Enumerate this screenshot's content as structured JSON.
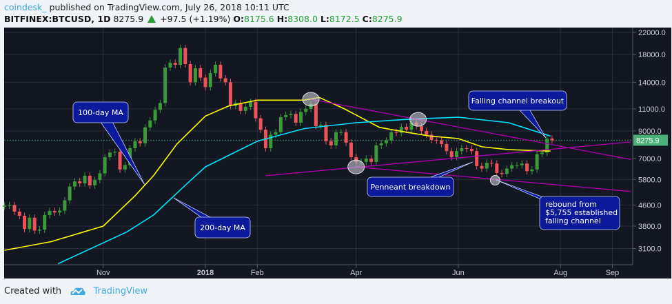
{
  "header": {
    "publisher": "coindesk_",
    "published_text": "published on TradingView.com, July 26, 2018 10:11 UTC",
    "symbol": "BITFINEX:BTCUSD, 1D",
    "last": "8275.9",
    "change": "+97.5 (+1.19%)",
    "o_label": "O:",
    "o": "8175.6",
    "h_label": "H:",
    "h": "8308.0",
    "l_label": "L:",
    "l": "8172.5",
    "c_label": "C:",
    "c": "8275.9",
    "direction_icon": "triangle-up-icon"
  },
  "footer": {
    "created_with": "Created with",
    "brand": "TradingView",
    "logo_icon": "tradingview-cloud-icon"
  },
  "colors": {
    "background": "#131722",
    "up": "#3a9a3a",
    "down": "#f0525a",
    "ma100": "#ffff00",
    "ma200": "#00e5ff",
    "trendline": "#b000b0",
    "callout": "#0a1a9a",
    "price_tag": "#4caf78"
  },
  "chart_data": {
    "type": "candlestick",
    "title": "",
    "y_scale": "log",
    "ylim": [
      2800,
      23000
    ],
    "y_ticks": [
      "22000.0",
      "18000.0",
      "14000.0",
      "11000.0",
      "9000.0",
      "7000.0",
      "5800.0",
      "4600.0",
      "3800.0",
      "3100.0"
    ],
    "y_tick_values": [
      22000,
      18000,
      14000,
      11000,
      9000,
      7000,
      5800,
      4600,
      3800,
      3100
    ],
    "x_ticks": [
      {
        "label": "Nov",
        "date": "2017-11-01"
      },
      {
        "label": "2018",
        "date": "2018-01-01"
      },
      {
        "label": "Feb",
        "date": "2018-02-01"
      },
      {
        "label": "Apr",
        "date": "2018-04-01"
      },
      {
        "label": "Jun",
        "date": "2018-06-01"
      },
      {
        "label": "Aug",
        "date": "2018-08-01"
      },
      {
        "label": "Sep",
        "date": "2018-09-01"
      }
    ],
    "xlim": [
      "2017-09-01",
      "2018-09-12"
    ],
    "grid": true,
    "last_price": {
      "value": 8275.9,
      "label": "8275.9"
    },
    "candles_start": "2017-09-03",
    "candles_interval_days": 3,
    "closes": [
      4580,
      4600,
      4330,
      4170,
      3700,
      4100,
      3650,
      3680,
      4200,
      4360,
      4300,
      4370,
      4800,
      5440,
      5700,
      5600,
      6000,
      5500,
      5770,
      6130,
      7100,
      7400,
      7450,
      6350,
      6600,
      7700,
      8200,
      8050,
      9300,
      9900,
      10900,
      11600,
      16000,
      16700,
      16400,
      19100,
      16500,
      14000,
      15900,
      14600,
      13400,
      15200,
      16400,
      14500,
      14000,
      11300,
      11600,
      10800,
      11200,
      11700,
      10100,
      9100,
      7700,
      8700,
      8900,
      10200,
      10400,
      10500,
      9700,
      10700,
      11000,
      11500,
      9400,
      9500,
      8200,
      7900,
      8900,
      8900,
      8100,
      7100,
      6800,
      6800,
      7000,
      6800,
      7900,
      8050,
      8250,
      8900,
      8850,
      9350,
      9100,
      9700,
      9400,
      9000,
      8700,
      8300,
      8250,
      8000,
      7500,
      7100,
      7500,
      7700,
      7650,
      7500,
      6550,
      6400,
      6750,
      6700,
      6150,
      6100,
      6400,
      6600,
      6600,
      6700,
      6250,
      6350,
      7300,
      7400,
      8400,
      8275.9
    ],
    "series": [
      {
        "name": "100-day MA",
        "points": [
          [
            "2017-09-03",
            3050
          ],
          [
            "2017-10-01",
            3300
          ],
          [
            "2017-11-01",
            3800
          ],
          [
            "2017-11-20",
            5000
          ],
          [
            "2017-12-01",
            6000
          ],
          [
            "2017-12-15",
            8000
          ],
          [
            "2018-01-01",
            10300
          ],
          [
            "2018-01-15",
            11300
          ],
          [
            "2018-02-01",
            11900
          ],
          [
            "2018-03-01",
            11900
          ],
          [
            "2018-03-10",
            12200
          ],
          [
            "2018-03-25",
            11000
          ],
          [
            "2018-04-15",
            9300
          ],
          [
            "2018-05-01",
            8900
          ],
          [
            "2018-05-15",
            8600
          ],
          [
            "2018-06-01",
            8400
          ],
          [
            "2018-06-15",
            7800
          ],
          [
            "2018-07-01",
            7600
          ],
          [
            "2018-07-26",
            7500
          ]
        ]
      },
      {
        "name": "200-day MA",
        "points": [
          [
            "2017-10-05",
            2700
          ],
          [
            "2017-11-15",
            3600
          ],
          [
            "2017-12-01",
            4200
          ],
          [
            "2017-12-20",
            5500
          ],
          [
            "2018-01-01",
            6500
          ],
          [
            "2018-02-01",
            8200
          ],
          [
            "2018-03-01",
            9200
          ],
          [
            "2018-04-01",
            9700
          ],
          [
            "2018-05-01",
            10000
          ],
          [
            "2018-06-01",
            10200
          ],
          [
            "2018-07-01",
            9700
          ],
          [
            "2018-07-26",
            8600
          ]
        ]
      }
    ],
    "trendlines": [
      [
        [
          "2018-03-05",
          12000
        ],
        [
          "2018-09-12",
          6950
        ]
      ],
      [
        [
          "2018-02-06",
          6000
        ],
        [
          "2018-09-12",
          8150
        ]
      ],
      [
        [
          "2018-04-01",
          6500
        ],
        [
          "2018-09-12",
          5200
        ]
      ]
    ],
    "highlights": [
      [
        "2018-03-05",
        12000
      ],
      [
        "2018-05-08",
        10000
      ],
      [
        "2018-04-01",
        6500
      ],
      [
        "2018-06-23",
        5755
      ]
    ],
    "annotations": [
      {
        "text": [
          "100-day MA"
        ]
      },
      {
        "text": [
          "200-day MA"
        ]
      },
      {
        "text": [
          "Falling channel breakout"
        ]
      },
      {
        "text": [
          "Penneant breakdown"
        ]
      },
      {
        "text": [
          "rebound from",
          "$5,755 established",
          "falling channel"
        ]
      }
    ]
  }
}
